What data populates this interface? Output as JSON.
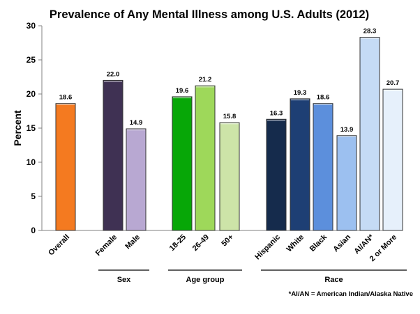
{
  "chart_data": {
    "type": "bar",
    "title": "Prevalence of Any Mental Illness among U.S. Adults (2012)",
    "ylabel": "Percent",
    "xlabel": "",
    "ylim": [
      0,
      30
    ],
    "yticks": [
      "0",
      "5",
      "10",
      "15",
      "20",
      "25",
      "30"
    ],
    "grid": false,
    "categories": [
      "Overall",
      "Female",
      "Male",
      "18-25",
      "26-49",
      "50+",
      "Hispanic",
      "White",
      "Black",
      "Asian",
      "AI/AN*",
      "2 or More"
    ],
    "values": [
      18.6,
      22.0,
      14.9,
      19.6,
      21.2,
      15.8,
      16.3,
      19.3,
      18.6,
      13.9,
      28.3,
      20.7
    ],
    "value_labels": [
      "18.6",
      "22.0",
      "14.9",
      "19.6",
      "21.2",
      "15.8",
      "16.3",
      "19.3",
      "18.6",
      "13.9",
      "28.3",
      "20.7"
    ],
    "colors": [
      "#f47a20",
      "#3f3153",
      "#b8a8d2",
      "#07a707",
      "#9ed85a",
      "#cde4a8",
      "#152b4c",
      "#1e3f74",
      "#5c8fdc",
      "#9cc0f0",
      "#c5dbf5",
      "#e6f0fb"
    ],
    "groups": [
      {
        "label": "Sex",
        "members": [
          1,
          2
        ]
      },
      {
        "label": "Age group",
        "members": [
          3,
          4,
          5
        ]
      },
      {
        "label": "Race",
        "members": [
          6,
          7,
          8,
          9,
          10,
          11
        ]
      }
    ],
    "footnote": "*AI/AN = American Indian/Alaska Native"
  }
}
